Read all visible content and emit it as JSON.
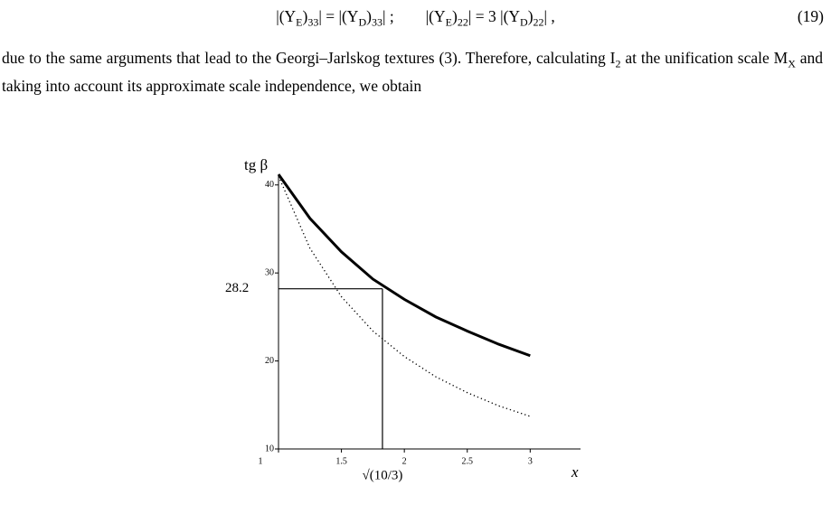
{
  "equation": {
    "parts": [
      "|(Y",
      "E",
      ")",
      "33",
      "| = |(Y",
      "D",
      ")",
      "33",
      "| ;        |(Y",
      "E",
      ")",
      "22",
      "| = 3 |(Y",
      "D",
      ")",
      "22",
      "| ,"
    ],
    "number": "(19)"
  },
  "paragraph": {
    "parts": [
      "due to the same arguments that lead to the Georgi–Jarlskog textures (3). Therefore, calculating I",
      "2",
      " at the unification scale M",
      "X",
      " and taking into account its approximate scale independence, we obtain"
    ]
  },
  "chart_data": {
    "type": "line",
    "y_label": "tg β",
    "x_label": "x",
    "x": [
      1,
      1.25,
      1.5,
      1.75,
      2,
      2.25,
      2.5,
      2.75,
      3
    ],
    "series": [
      {
        "color": "#000000",
        "dash": "solid",
        "values": [
          41.2,
          36.2,
          32.4,
          29.3,
          27.0,
          25.0,
          23.4,
          21.9,
          20.6
        ]
      },
      {
        "color": "#000000",
        "dash": "dotted",
        "values": [
          41,
          32.8,
          27.3,
          23.4,
          20.5,
          18.2,
          16.4,
          14.9,
          13.7
        ]
      }
    ],
    "xlim": [
      1,
      3.4
    ],
    "ylim": [
      10,
      41
    ],
    "xticks": [
      1,
      1.5,
      2,
      2.5,
      3
    ],
    "yticks": [
      10,
      20,
      30,
      40
    ],
    "marker": {
      "x": {
        "value": 1.826,
        "label": "√(10/3)"
      },
      "y": 28.2
    }
  }
}
